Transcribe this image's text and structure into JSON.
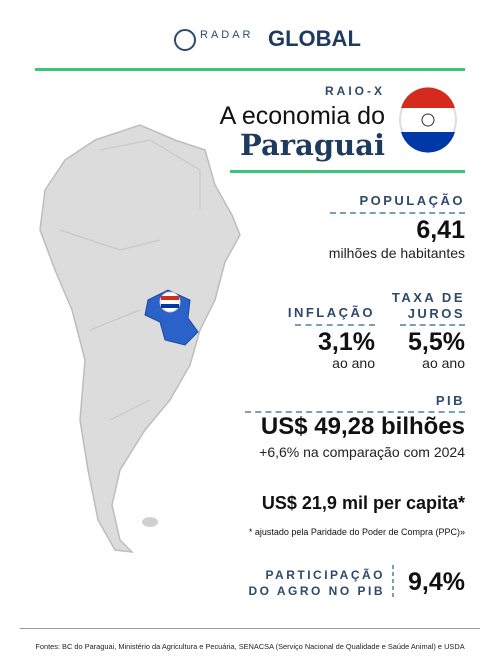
{
  "header": {
    "logo_left": "RADAR",
    "logo_right": "GLOBAL"
  },
  "title": {
    "kicker": "RAIO-X",
    "line1": "A economia do",
    "line2": "Paraguai"
  },
  "populacao": {
    "label": "POPULAÇÃO",
    "value": "6,41",
    "unit": "milhões de habitantes"
  },
  "inflacao": {
    "label": "INFLAÇÃO",
    "value": "3,1%",
    "unit": "ao ano"
  },
  "juros": {
    "label_lines": [
      "TAXA DE",
      "JUROS"
    ],
    "value": "5,5%",
    "unit": "ao ano"
  },
  "pib": {
    "label": "PIB",
    "value": "US$ 49,28 bilhões",
    "note": "+6,6% na comparação com 2024",
    "per_capita": "US$ 21,9 mil per capita*",
    "footnote": "* ajustado pela Paridade do Poder de Compra (PPC)»"
  },
  "agro": {
    "label_lines": [
      "PARTICIPAÇÃO",
      "DO AGRO NO PIB"
    ],
    "value": "9,4%"
  },
  "footer": {
    "sources": "Fontes: BC do Paraguai, Ministério da Agricultura e Pecuária, SENACSA (Serviço Nacional de Qualidade e Saúde Animal) e USDA"
  }
}
